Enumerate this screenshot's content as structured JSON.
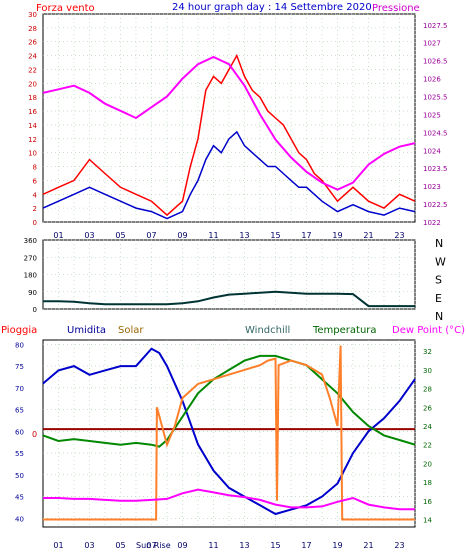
{
  "chart_data": [
    {
      "type": "line",
      "title": "24 hour graph day : 14 Settembre 2020",
      "left_label": "Forza vento",
      "right_label": "Pressione",
      "x_ticks": [
        "01",
        "03",
        "05",
        "07",
        "09",
        "11",
        "13",
        "15",
        "17",
        "19",
        "21",
        "23"
      ],
      "left_ticks": [
        "0",
        "2",
        "4",
        "6",
        "8",
        "10",
        "12",
        "14",
        "16",
        "18",
        "20",
        "22",
        "24",
        "26",
        "28",
        "30"
      ],
      "right_ticks": [
        "1022",
        "1022.5",
        "1023",
        "1023.5",
        "1024",
        "1024.5",
        "1025",
        "1025.5",
        "1026",
        "1026.5",
        "1027",
        "1027.5"
      ],
      "ylim_left": [
        0,
        30
      ],
      "ylim_right": [
        1022,
        1027.8
      ],
      "series": [
        {
          "name": "Forza vento",
          "color": "#ff0000",
          "axis": "left",
          "x": [
            0,
            1,
            2,
            3,
            4,
            5,
            6,
            7,
            8,
            9,
            9.5,
            10,
            10.5,
            11,
            11.5,
            12,
            12.5,
            13,
            13.5,
            14,
            14.5,
            15,
            15.5,
            16,
            16.5,
            17,
            17.5,
            18,
            19,
            20,
            21,
            22,
            23,
            24
          ],
          "y": [
            4,
            5,
            6,
            9,
            7,
            5,
            4,
            3,
            1,
            3,
            8,
            12,
            19,
            21,
            20,
            22,
            24,
            21,
            19,
            18,
            16,
            15,
            14,
            12,
            10,
            9,
            7,
            6,
            3,
            5,
            3,
            2,
            4,
            3
          ]
        },
        {
          "name": "",
          "color": "#0000cc",
          "axis": "left",
          "x": [
            0,
            1,
            2,
            3,
            4,
            5,
            6,
            7,
            8,
            9,
            9.5,
            10,
            10.5,
            11,
            11.5,
            12,
            12.5,
            13,
            13.5,
            14,
            14.5,
            15,
            15.5,
            16,
            16.5,
            17,
            17.5,
            18,
            19,
            20,
            21,
            22,
            23,
            24
          ],
          "y": [
            2,
            3,
            4,
            5,
            4,
            3,
            2,
            1.5,
            0.5,
            1.5,
            4,
            6,
            9,
            11,
            10,
            12,
            13,
            11,
            10,
            9,
            8,
            8,
            7,
            6,
            5,
            5,
            4,
            3,
            1.5,
            2.5,
            1.5,
            1,
            2,
            1.5
          ]
        },
        {
          "name": "Pressione",
          "color": "#ff00ff",
          "axis": "right",
          "x": [
            0,
            1,
            2,
            3,
            4,
            5,
            6,
            7,
            8,
            9,
            10,
            11,
            11.5,
            12,
            13,
            14,
            15,
            16,
            17,
            18,
            19,
            20,
            21,
            22,
            23,
            24
          ],
          "y": [
            1025.6,
            1025.7,
            1025.8,
            1025.6,
            1025.3,
            1025.1,
            1024.9,
            1025.2,
            1025.5,
            1026.0,
            1026.4,
            1026.6,
            1026.5,
            1026.4,
            1025.8,
            1025.0,
            1024.3,
            1023.8,
            1023.4,
            1023.1,
            1022.9,
            1023.1,
            1023.6,
            1023.9,
            1024.1,
            1024.2
          ]
        }
      ]
    },
    {
      "type": "line",
      "title": "",
      "x_ticks": [
        "01",
        "03",
        "05",
        "07",
        "09",
        "11",
        "13",
        "15",
        "17",
        "19",
        "21",
        "23"
      ],
      "left_ticks": [
        "0",
        "90",
        "180",
        "270",
        "360"
      ],
      "right_ticks": [
        "N",
        "W",
        "S",
        "E",
        "N"
      ],
      "ylim": [
        0,
        360
      ],
      "series": [
        {
          "name": "",
          "color": "#003333",
          "x": [
            0,
            1,
            2,
            3,
            4,
            5,
            6,
            7,
            8,
            9,
            10,
            11,
            12,
            13,
            14,
            15,
            16,
            17,
            18,
            19,
            20,
            21,
            22,
            23,
            24
          ],
          "y": [
            40,
            40,
            38,
            30,
            25,
            25,
            25,
            25,
            25,
            30,
            40,
            60,
            75,
            80,
            85,
            90,
            85,
            80,
            80,
            80,
            78,
            15,
            15,
            15,
            15
          ]
        }
      ]
    },
    {
      "type": "line",
      "title": "",
      "legend": [
        "Pioggia",
        "Umidita",
        "Solar",
        "Windchill",
        "Temperatura",
        "Dew Point (°C)"
      ],
      "legend_colors": [
        "#ff0000",
        "#000099",
        "#996600",
        "#336666",
        "#006600",
        "#ff00ff"
      ],
      "x_ticks": [
        "01",
        "03",
        "05",
        "07",
        "09",
        "11",
        "13",
        "15",
        "17",
        "19",
        "21",
        "23"
      ],
      "x_labels_extra": [
        "Sun Rise"
      ],
      "left_ticks": [
        "40",
        "45",
        "50",
        "55",
        "60",
        "65",
        "70",
        "75",
        "80"
      ],
      "right_ticks": [
        "14",
        "16",
        "18",
        "20",
        "22",
        "24",
        "26",
        "28",
        "30",
        "32"
      ],
      "ylim_left": [
        38,
        81
      ],
      "ylim_right": [
        13.2,
        33.2
      ],
      "rain_level_label": "0",
      "series": [
        {
          "name": "Umidita",
          "color": "#0000cc",
          "axis": "left",
          "x": [
            0,
            1,
            2,
            3,
            4,
            5,
            6,
            7,
            7.5,
            8,
            9,
            10,
            11,
            12,
            13,
            14,
            15,
            16,
            17,
            18,
            19,
            20,
            21,
            22,
            23,
            24
          ],
          "y": [
            71,
            74,
            75,
            73,
            74,
            75,
            75,
            79,
            78,
            75,
            67,
            57,
            51,
            47,
            45,
            43,
            41,
            42,
            43,
            45,
            48,
            55,
            60,
            63,
            67,
            72
          ]
        },
        {
          "name": "Temperatura",
          "color": "#008800",
          "axis": "right",
          "x": [
            0,
            1,
            2,
            3,
            4,
            5,
            6,
            7,
            7.5,
            8,
            9,
            10,
            11,
            12,
            13,
            14,
            15,
            16,
            17,
            18,
            19,
            20,
            21,
            22,
            23,
            24
          ],
          "y": [
            23,
            22.4,
            22.6,
            22.4,
            22.2,
            22.0,
            22.2,
            22.0,
            21.8,
            22.5,
            25,
            27.5,
            29,
            30,
            31,
            31.5,
            31.5,
            31,
            30.5,
            29,
            27.5,
            25.5,
            24,
            23,
            22.5,
            22
          ]
        },
        {
          "name": "Solar",
          "color": "#ff7f2a",
          "axis": "right",
          "x": [
            0,
            7.3,
            7.35,
            8,
            8.5,
            9,
            10,
            11,
            12,
            13,
            14,
            14.5,
            15,
            15.1,
            15.2,
            16,
            17,
            18,
            18.5,
            19,
            19.2,
            19.3,
            19.4,
            24
          ],
          "y": [
            14,
            14,
            26,
            22,
            24,
            27,
            28.5,
            29,
            29.5,
            30,
            30.5,
            31,
            31.2,
            16,
            30.5,
            31,
            30.5,
            29.5,
            27,
            24,
            32.6,
            14,
            14,
            14
          ]
        },
        {
          "name": "Dew Point (°C)",
          "color": "#ff00ff",
          "axis": "right",
          "x": [
            0,
            1,
            2,
            3,
            4,
            5,
            6,
            7,
            8,
            9,
            10,
            11,
            12,
            13,
            14,
            15,
            16,
            17,
            18,
            19,
            20,
            21,
            22,
            23,
            24
          ],
          "y": [
            16.3,
            16.3,
            16.2,
            16.2,
            16.1,
            16.0,
            16.0,
            16.1,
            16.2,
            16.8,
            17.2,
            16.9,
            16.6,
            16.4,
            16.1,
            15.6,
            15.3,
            15.3,
            15.4,
            15.9,
            16.3,
            15.6,
            15.3,
            15.1,
            15.1
          ]
        }
      ]
    }
  ]
}
